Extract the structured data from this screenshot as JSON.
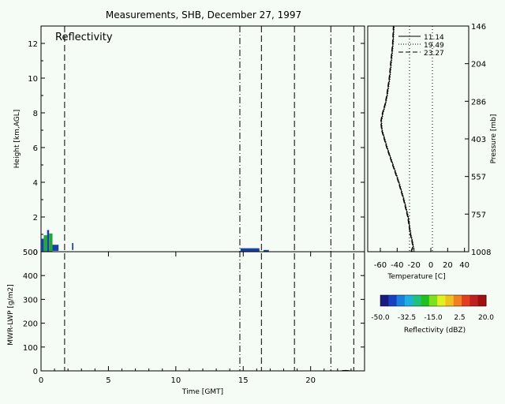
{
  "chart_data": {
    "title": "Measurements, SHB, December 27, 1997",
    "panels": {
      "reflectivity": {
        "type": "heatmap",
        "label": "Reflectivity",
        "ylabel": "Height [km,AGL]",
        "xlim": [
          0,
          24
        ],
        "ylim": [
          0,
          13
        ],
        "yticks": [
          "0",
          "2",
          "4",
          "6",
          "8",
          "10",
          "12"
        ],
        "echoes": [
          {
            "x0": 0.0,
            "x1": 0.2,
            "y0": 0.0,
            "y1": 0.75,
            "color": "#1a40a0"
          },
          {
            "x0": 0.2,
            "x1": 0.45,
            "y0": 0.0,
            "y1": 0.95,
            "color": "#22a83a"
          },
          {
            "x0": 0.45,
            "x1": 0.6,
            "y0": 0.0,
            "y1": 1.25,
            "color": "#1a40a0"
          },
          {
            "x0": 0.6,
            "x1": 0.85,
            "y0": 0.0,
            "y1": 1.05,
            "color": "#22a83a"
          },
          {
            "x0": 0.85,
            "x1": 1.3,
            "y0": 0.05,
            "y1": 0.4,
            "color": "#1a40a0"
          },
          {
            "x0": 2.3,
            "x1": 2.4,
            "y0": 0.1,
            "y1": 0.5,
            "color": "#1a40a0"
          },
          {
            "x0": 14.8,
            "x1": 16.2,
            "y0": 0.0,
            "y1": 0.2,
            "color": "#1a40a0"
          },
          {
            "x0": 16.5,
            "x1": 16.9,
            "y0": 0.0,
            "y1": 0.1,
            "color": "#1a40a0"
          }
        ]
      },
      "lwp": {
        "type": "line",
        "ylabel": "MWR-LWP [g/m2]",
        "xlabel": "Time [GMT]",
        "xlim": [
          0,
          24
        ],
        "ylim": [
          0,
          500
        ],
        "xticks": [
          "0",
          "5",
          "10",
          "15",
          "20"
        ],
        "yticks": [
          "0",
          "100",
          "200",
          "300",
          "400",
          "500"
        ],
        "x": [
          22.3,
          22.6,
          22.9
        ],
        "y": [
          1,
          2,
          1
        ]
      },
      "sounding": {
        "type": "line",
        "xlabel": "Temperature [C]",
        "ylabel": "Pressure [mb]",
        "xticks": [
          "-60",
          "-40",
          "-20",
          "0",
          "20",
          "40"
        ],
        "xlim": [
          -75,
          45
        ],
        "pressure_ticks": [
          "146",
          "204",
          "286",
          "403",
          "557",
          "757",
          "1008"
        ],
        "legend": [
          "11.14",
          "19.49",
          "23.27"
        ],
        "profile_height_km": [
          0,
          0.3,
          0.6,
          1,
          2,
          3,
          4,
          5,
          6,
          7,
          7.5,
          8,
          8.5,
          9,
          10,
          11,
          12,
          13
        ],
        "profile_temp_c": [
          -23,
          -21,
          -22,
          -24,
          -27,
          -32,
          -38,
          -45,
          -52,
          -58,
          -59,
          -57,
          -54,
          -52,
          -49,
          -47,
          -45,
          -44
        ]
      }
    },
    "markers": {
      "dashed_times": [
        1.75,
        14.75,
        16.35,
        18.8,
        21.5,
        23.2
      ],
      "dash_dot_times": [
        14.75,
        21.5
      ]
    },
    "colorbar": {
      "label": "Reflectivity (dBZ)",
      "ticks": [
        "-50.0",
        "-32.5",
        "-15.0",
        "2.5",
        "20.0"
      ],
      "colors": [
        "#1a1a80",
        "#1a40c0",
        "#1a80e0",
        "#20b0e0",
        "#20c080",
        "#20c020",
        "#80e020",
        "#e0f020",
        "#f0c020",
        "#f08020",
        "#e04020",
        "#c02020",
        "#a01010"
      ]
    }
  }
}
